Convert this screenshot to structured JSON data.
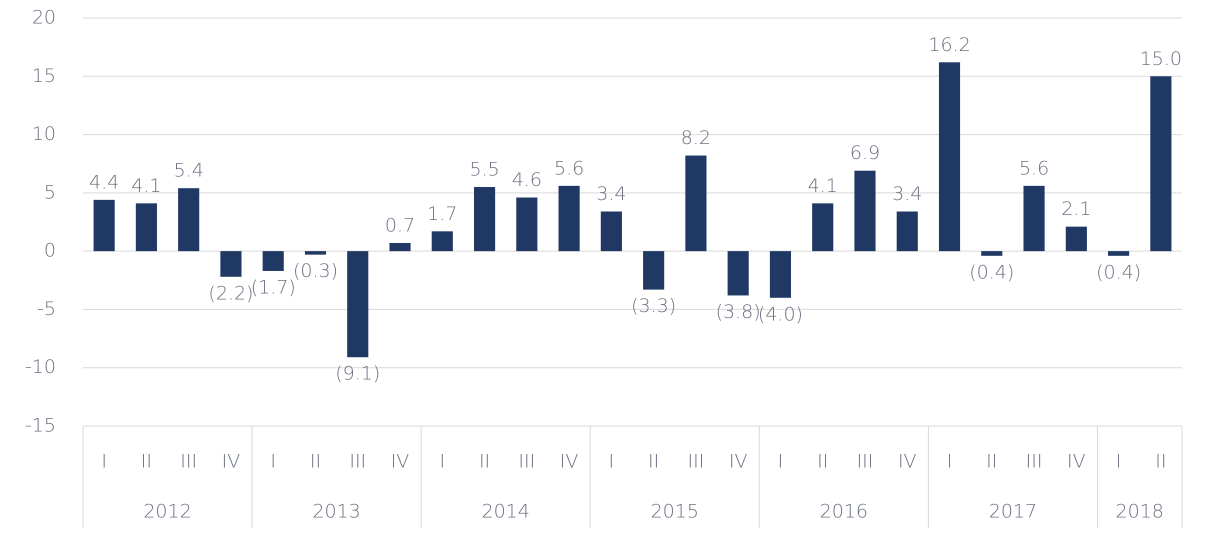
{
  "chart_data": {
    "type": "bar",
    "color": "#1f3864",
    "grid": true,
    "ylim": [
      -15,
      20
    ],
    "yticks": [
      -15,
      -10,
      -5,
      0,
      5,
      10,
      15,
      20
    ],
    "groups": [
      {
        "label": "2012",
        "categories": [
          "I",
          "II",
          "III",
          "IV"
        ]
      },
      {
        "label": "2013",
        "categories": [
          "I",
          "II",
          "III",
          "IV"
        ]
      },
      {
        "label": "2014",
        "categories": [
          "I",
          "II",
          "III",
          "IV"
        ]
      },
      {
        "label": "2015",
        "categories": [
          "I",
          "II",
          "III",
          "IV"
        ]
      },
      {
        "label": "2016",
        "categories": [
          "I",
          "II",
          "III",
          "IV"
        ]
      },
      {
        "label": "2017",
        "categories": [
          "I",
          "II",
          "III",
          "IV"
        ]
      },
      {
        "label": "2018",
        "categories": [
          "I",
          "II"
        ]
      }
    ],
    "values": [
      4.4,
      4.1,
      5.4,
      -2.2,
      -1.7,
      -0.3,
      -9.1,
      0.7,
      1.7,
      5.5,
      4.6,
      5.6,
      3.4,
      -3.3,
      8.2,
      -3.8,
      -4.0,
      4.1,
      6.9,
      3.4,
      16.2,
      -0.4,
      5.6,
      2.1,
      -0.4,
      15.0
    ],
    "value_labels": [
      "4.4",
      "4.1",
      "5.4",
      "(2.2)",
      "(1.7)",
      "(0.3)",
      "(9.1)",
      "0.7",
      "1.7",
      "5.5",
      "4.6",
      "5.6",
      "3.4",
      "(3.3)",
      "8.2",
      "(3.8)",
      "(4.0)",
      "4.1",
      "6.9",
      "3.4",
      "16.2",
      "(0.4)",
      "5.6",
      "2.1",
      "(0.4)",
      "15.0"
    ]
  }
}
